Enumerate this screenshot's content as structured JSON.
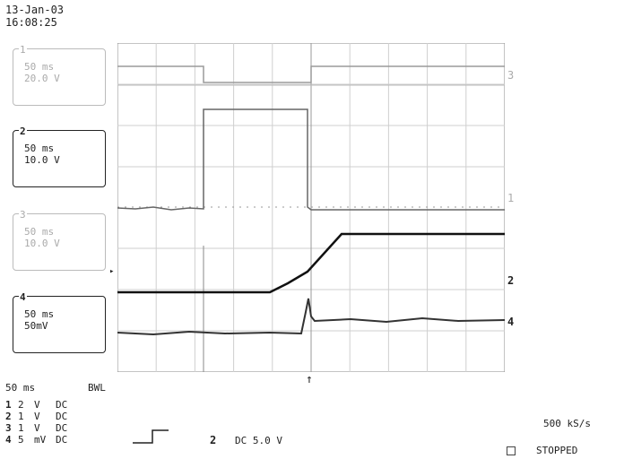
{
  "header": {
    "date": "13-Jan-03",
    "time": "16:08:25"
  },
  "channels": [
    {
      "id": "1",
      "line1": "50 ms",
      "line2": "20.0 V"
    },
    {
      "id": "2",
      "line1": "50 ms",
      "line2": "10.0 V"
    },
    {
      "id": "3",
      "line1": "50 ms",
      "line2": "10.0 V"
    },
    {
      "id": "4",
      "line1": "50 ms",
      "line2": "50mV"
    }
  ],
  "trace_labels": {
    "t3": "3",
    "t1": "1",
    "t2": "2",
    "t4": "4"
  },
  "timebase": {
    "value": "50 ms",
    "bwl": "BWL",
    "rows": [
      {
        "ch": "1",
        "scale": "2",
        "unit": "V",
        "coupling": "DC"
      },
      {
        "ch": "2",
        "scale": "1",
        "unit": "V",
        "coupling": "DC"
      },
      {
        "ch": "3",
        "scale": "1",
        "unit": "V",
        "coupling": "DC"
      },
      {
        "ch": "4",
        "scale": "5",
        "unit": "mV",
        "coupling": "DC"
      }
    ]
  },
  "trigger": {
    "channel": "2",
    "coupling": "DC 5.0 V"
  },
  "status": {
    "sample_rate": "500 kS/s",
    "state": "STOPPED"
  }
}
